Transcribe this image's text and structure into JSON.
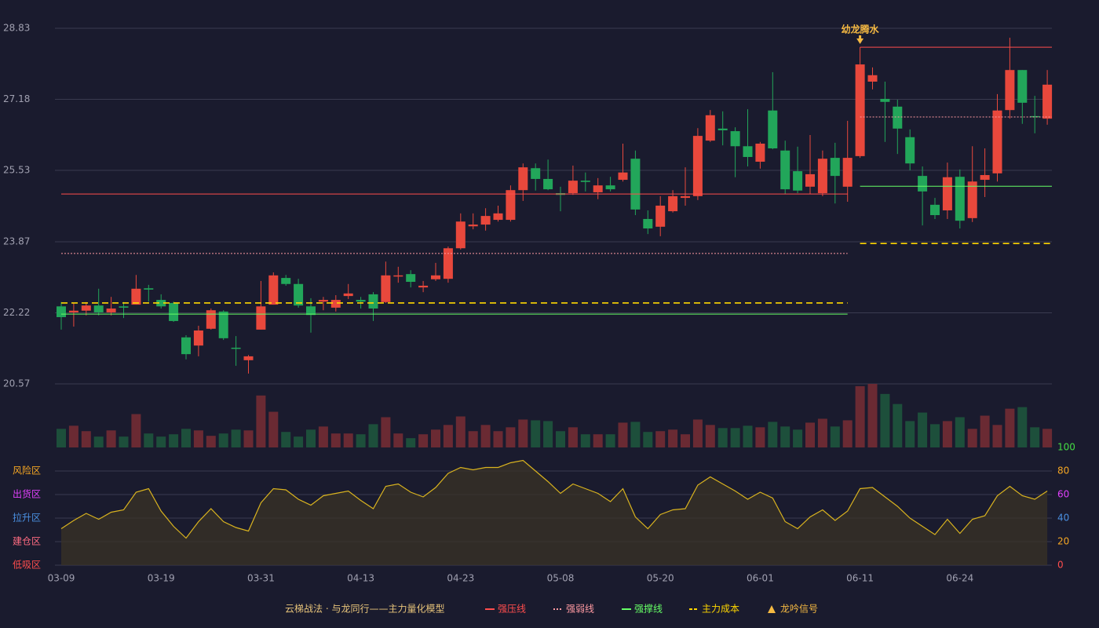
{
  "chart_data": [
    {
      "type": "candlestick",
      "categories": [
        "03-09",
        null,
        null,
        null,
        null,
        null,
        null,
        null,
        "03-19",
        null,
        null,
        null,
        null,
        null,
        null,
        null,
        "03-31",
        null,
        null,
        null,
        null,
        null,
        null,
        null,
        "04-13",
        null,
        null,
        null,
        null,
        null,
        null,
        null,
        "04-23",
        null,
        null,
        null,
        null,
        null,
        null,
        null,
        "05-08",
        null,
        null,
        null,
        null,
        null,
        null,
        null,
        "05-20",
        null,
        null,
        null,
        null,
        null,
        null,
        null,
        "06-01",
        null,
        null,
        null,
        null,
        null,
        null,
        null,
        "06-11",
        null,
        null,
        null,
        null,
        null,
        null,
        null,
        "06-24",
        null,
        null,
        null,
        null,
        null,
        null,
        null
      ],
      "open": [
        22.37,
        22.23,
        22.27,
        22.39,
        22.23,
        22.37,
        22.41,
        22.79,
        22.52,
        22.45,
        21.65,
        21.46,
        21.85,
        22.25,
        21.41,
        21.12,
        21.83,
        22.41,
        23.03,
        22.89,
        22.37,
        22.48,
        22.34,
        22.61,
        22.52,
        22.65,
        22.47,
        23.07,
        23.12,
        22.81,
        23.0,
        23.01,
        23.72,
        24.23,
        24.27,
        24.38,
        24.38,
        25.07,
        25.58,
        25.33,
        25.0,
        25.0,
        25.29,
        25.02,
        25.18,
        25.31,
        25.8,
        24.4,
        24.22,
        24.58,
        24.89,
        24.93,
        26.22,
        26.5,
        26.44,
        26.09,
        25.73,
        26.92,
        25.99,
        25.51,
        25.15,
        25.0,
        25.82,
        25.15,
        25.86,
        27.59,
        27.19,
        27.01,
        26.3,
        25.4,
        24.73,
        24.6,
        25.38,
        24.42,
        25.31,
        25.46,
        26.93,
        27.86,
        26.79,
        26.73
      ],
      "close": [
        22.12,
        22.27,
        22.39,
        22.23,
        22.32,
        22.34,
        22.78,
        22.76,
        22.37,
        22.03,
        21.26,
        21.81,
        22.28,
        21.63,
        21.39,
        21.21,
        22.37,
        23.09,
        22.89,
        22.39,
        22.17,
        22.52,
        22.52,
        22.67,
        22.48,
        22.32,
        23.09,
        23.09,
        22.94,
        22.85,
        23.09,
        23.72,
        24.34,
        24.27,
        24.47,
        24.53,
        25.07,
        25.6,
        25.33,
        25.09,
        24.96,
        25.29,
        25.26,
        25.18,
        25.09,
        25.48,
        24.62,
        24.18,
        24.71,
        24.93,
        24.93,
        26.33,
        26.81,
        26.46,
        26.09,
        25.84,
        26.15,
        26.04,
        25.09,
        25.06,
        25.44,
        25.8,
        25.4,
        25.82,
        27.99,
        27.74,
        27.12,
        26.5,
        25.69,
        25.04,
        24.49,
        25.37,
        24.36,
        25.27,
        25.42,
        26.92,
        27.86,
        27.1,
        26.77,
        27.52
      ],
      "high": [
        22.47,
        22.45,
        22.47,
        22.78,
        22.59,
        22.47,
        23.1,
        22.87,
        22.65,
        22.48,
        21.7,
        21.92,
        22.32,
        22.28,
        21.68,
        21.24,
        22.96,
        23.16,
        23.1,
        23.01,
        22.56,
        22.59,
        22.63,
        22.89,
        22.59,
        22.7,
        23.41,
        23.29,
        23.21,
        22.96,
        23.38,
        23.76,
        24.53,
        24.53,
        24.65,
        24.71,
        25.18,
        25.69,
        25.69,
        25.78,
        25.15,
        25.64,
        25.48,
        25.35,
        25.38,
        26.15,
        25.99,
        24.6,
        24.93,
        25.07,
        25.6,
        26.51,
        26.93,
        26.9,
        26.53,
        26.95,
        26.19,
        27.81,
        26.22,
        26.08,
        26.35,
        25.99,
        26.17,
        26.68,
        28.39,
        27.92,
        27.59,
        27.17,
        26.48,
        25.62,
        24.89,
        25.71,
        25.55,
        26.09,
        26.04,
        27.3,
        28.61,
        27.86,
        27.26,
        27.86
      ],
      "low": [
        21.83,
        21.9,
        22.16,
        22.16,
        22.16,
        22.1,
        22.41,
        22.48,
        22.32,
        22.01,
        21.14,
        21.21,
        21.83,
        21.59,
        20.99,
        20.81,
        21.83,
        22.41,
        22.85,
        22.34,
        21.76,
        22.28,
        22.25,
        22.54,
        22.32,
        22.03,
        22.45,
        22.92,
        22.81,
        22.7,
        22.96,
        22.92,
        23.69,
        24.16,
        24.13,
        24.34,
        24.34,
        24.82,
        25.06,
        25.07,
        24.58,
        24.96,
        25.04,
        24.86,
        25.04,
        25.27,
        24.49,
        24.05,
        24.0,
        24.55,
        24.71,
        24.84,
        26.19,
        26.11,
        25.37,
        25.62,
        25.57,
        26.02,
        24.98,
        25.0,
        24.98,
        24.93,
        24.76,
        24.8,
        25.82,
        27.41,
        26.19,
        25.91,
        25.53,
        24.25,
        24.4,
        24.4,
        24.18,
        24.33,
        24.91,
        25.27,
        26.73,
        26.61,
        26.39,
        26.59
      ],
      "up_color": "#e8483c",
      "down_color": "#22a65a",
      "ylim": [
        20.57,
        28.83
      ],
      "yticks": [
        28.83,
        27.18,
        25.53,
        23.87,
        22.22,
        20.57
      ],
      "grid": true,
      "levels": [
        {
          "name": "强压线",
          "color": "#ff4d4d",
          "style": "solid",
          "segments": [
            {
              "from": 0,
              "to": 63,
              "value": 24.98
            },
            {
              "from": 64,
              "to": 79,
              "value": 28.39
            }
          ]
        },
        {
          "name": "强弱线",
          "color": "#ff9aa2",
          "style": "dotted",
          "segments": [
            {
              "from": 0,
              "to": 63,
              "value": 23.6
            },
            {
              "from": 64,
              "to": 79,
              "value": 26.77
            }
          ]
        },
        {
          "name": "强撑线",
          "color": "#66ff66",
          "style": "solid",
          "segments": [
            {
              "from": 0,
              "to": 63,
              "value": 22.19
            },
            {
              "from": 64,
              "to": 79,
              "value": 25.16
            }
          ]
        },
        {
          "name": "主力成本",
          "color": "#ffd700",
          "style": "dashed",
          "segments": [
            {
              "from": 0,
              "to": 63,
              "value": 22.45
            },
            {
              "from": 64,
              "to": 79,
              "value": 23.83
            }
          ]
        }
      ],
      "signal": {
        "name": "龙吟信号",
        "color": "#f5b942",
        "points": [
          {
            "index": 64,
            "label": "幼龙腾水"
          }
        ]
      },
      "legend_title": "云梯战法 · 与龙同行——主力量化模型"
    },
    {
      "type": "bar",
      "values": [
        24,
        28,
        21,
        14,
        22,
        14,
        43,
        18,
        14,
        17,
        24,
        22,
        15,
        18,
        23,
        22,
        67,
        46,
        20,
        14,
        23,
        27,
        18,
        18,
        17,
        30,
        39,
        18,
        12,
        17,
        23,
        29,
        40,
        21,
        29,
        21,
        26,
        36,
        35,
        34,
        21,
        26,
        17,
        17,
        17,
        32,
        33,
        20,
        21,
        23,
        17,
        36,
        29,
        25,
        25,
        28,
        26,
        33,
        27,
        23,
        32,
        37,
        27,
        35,
        79,
        82,
        69,
        56,
        34,
        45,
        30,
        34,
        39,
        24,
        41,
        29,
        50,
        52,
        26,
        24
      ],
      "up_color": "#6a2a33",
      "down_color": "#1d4f3b"
    },
    {
      "type": "line",
      "values": [
        31,
        38,
        44,
        39,
        45,
        47,
        62,
        65,
        46,
        33,
        23,
        37,
        48,
        37,
        32,
        29,
        53,
        65,
        64,
        56,
        51,
        59,
        61,
        63,
        55,
        48,
        67,
        69,
        62,
        58,
        66,
        78,
        83,
        81,
        83,
        83,
        87,
        89,
        80,
        71,
        61,
        69,
        65,
        61,
        54,
        65,
        41,
        31,
        43,
        47,
        48,
        68,
        75,
        69,
        63,
        56,
        62,
        57,
        37,
        31,
        41,
        47,
        38,
        46,
        65,
        66,
        58,
        50,
        40,
        33,
        26,
        39,
        27,
        39,
        42,
        59,
        67,
        59,
        56,
        63
      ],
      "color": "#d9b31f",
      "ylim": [
        0,
        100
      ],
      "yticks": [
        100,
        80,
        60,
        40,
        20,
        0
      ],
      "ytick_colors": [
        "#44dd44",
        "#f5a623",
        "#e040fb",
        "#4a90e2",
        "#f5a623",
        "#ff4d4d"
      ],
      "zones": [
        {
          "label": "风险区",
          "value": 80,
          "color": "#f5a623"
        },
        {
          "label": "出货区",
          "value": 60,
          "color": "#e040fb"
        },
        {
          "label": "拉升区",
          "value": 40,
          "color": "#4a90e2"
        },
        {
          "label": "建仓区",
          "value": 20,
          "color": "#ff6b81"
        },
        {
          "label": "低吸区",
          "value": 0,
          "color": "#ff4d4d"
        }
      ]
    }
  ]
}
